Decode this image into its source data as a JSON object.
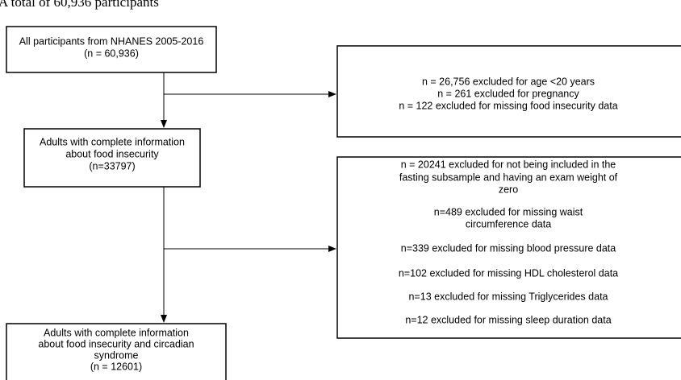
{
  "header": {
    "caption": "n. A total of 60,936 participants"
  },
  "nodes": [
    {
      "lines": [
        "All participants from NHANES 2005-2016",
        "(n = 60,936)"
      ]
    },
    {
      "lines": [
        "Adults with complete information",
        "about food insecurity",
        "(n=33797)"
      ]
    },
    {
      "lines": [
        "Adults with complete information",
        "about food insecurity and circadian",
        "syndrome",
        "(n = 12601)"
      ]
    }
  ],
  "exclusions": [
    {
      "items": [
        {
          "lines": [
            "n = 26,756 excluded for age <20 years"
          ]
        },
        {
          "lines": [
            "n = 261 excluded for pregnancy"
          ]
        },
        {
          "lines": [
            "n = 122 excluded for missing food insecurity data"
          ]
        }
      ]
    },
    {
      "items": [
        {
          "lines": [
            "n = 20241 excluded for not being included in the",
            "fasting subsample and having an exam weight of",
            "zero"
          ]
        },
        {
          "lines": [
            "n=489 excluded for missing waist",
            "circumference data"
          ]
        },
        {
          "lines": [
            "n=339 excluded for missing blood pressure data"
          ]
        },
        {
          "lines": [
            "n=102 excluded for missing HDL cholesterol data"
          ]
        },
        {
          "lines": [
            "n=13 excluded for missing Triglycerides data"
          ]
        },
        {
          "lines": [
            "n=12 excluded for missing sleep duration data"
          ]
        }
      ]
    }
  ]
}
